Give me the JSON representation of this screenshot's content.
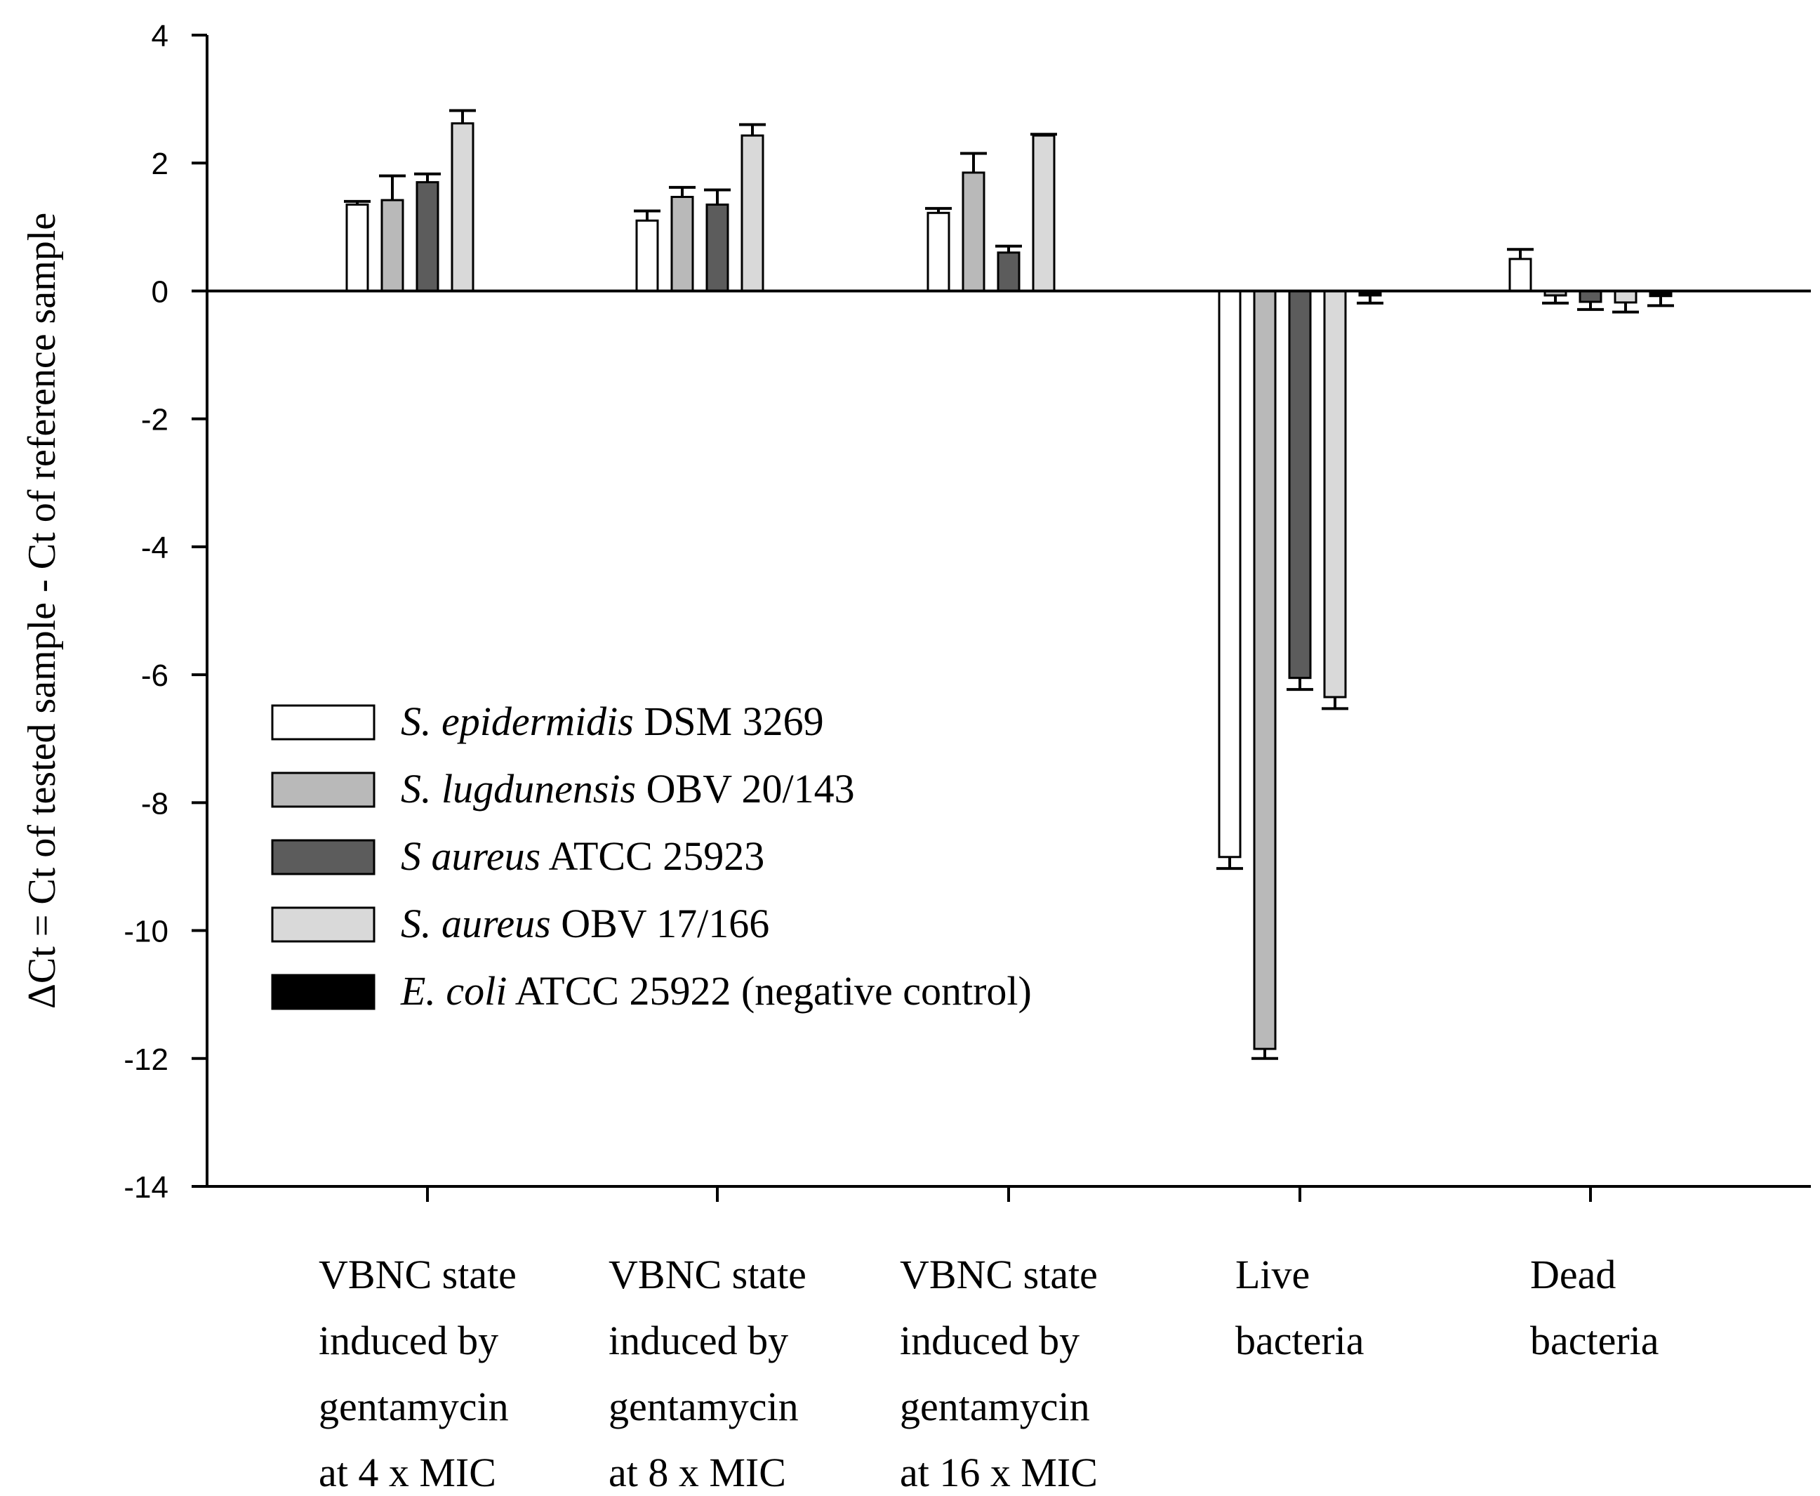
{
  "chart_data": {
    "type": "bar",
    "title": "",
    "xlabel": "",
    "ylabel": "ΔCt = Ct of tested sample - Ct of reference sample",
    "ylim": [
      -14,
      4
    ],
    "yticks": [
      4,
      2,
      0,
      -2,
      -4,
      -6,
      -8,
      -10,
      -12,
      -14
    ],
    "grid": false,
    "legend_position": "center-left",
    "categories": [
      [
        "VBNC state",
        "induced by",
        "gentamycin",
        "at 4 x MIC"
      ],
      [
        "VBNC state",
        "induced by",
        "gentamycin",
        "at 8 x MIC"
      ],
      [
        "VBNC state",
        "induced by",
        "gentamycin",
        "at 16 x MIC"
      ],
      [
        "Live",
        "bacteria"
      ],
      [
        "Dead",
        "bacteria"
      ]
    ],
    "series": [
      {
        "name_italic": "S. epidermidis",
        "name_rest": " DSM 3269",
        "color": "#ffffff",
        "values": [
          1.35,
          1.1,
          1.22,
          -8.85,
          0.5
        ],
        "errors": [
          0.05,
          0.15,
          0.07,
          0.18,
          0.15
        ]
      },
      {
        "name_italic": "S. lugdunensis",
        "name_rest": " OBV 20/143",
        "color": "#b9b9b9",
        "values": [
          1.42,
          1.47,
          1.85,
          -11.85,
          -0.07
        ],
        "errors": [
          0.38,
          0.15,
          0.3,
          0.15,
          0.12
        ]
      },
      {
        "name_italic": "S aureus",
        "name_rest": " ATCC 25923",
        "color": "#5c5c5c",
        "values": [
          1.7,
          1.35,
          0.6,
          -6.05,
          -0.17
        ],
        "errors": [
          0.13,
          0.23,
          0.1,
          0.18,
          0.12
        ]
      },
      {
        "name_italic": "S. aureus",
        "name_rest": " OBV 17/166",
        "color": "#d9d9d9",
        "values": [
          2.62,
          2.43,
          2.43,
          -6.35,
          -0.18
        ],
        "errors": [
          0.2,
          0.17,
          0.02,
          0.18,
          0.15
        ]
      },
      {
        "name_italic": "E. coli",
        "name_rest": " ATCC 25922 (negative control)",
        "color": "#000000",
        "values": [
          0,
          0,
          0,
          -0.07,
          -0.08
        ],
        "errors": [
          0,
          0,
          0,
          0.12,
          0.15
        ]
      }
    ]
  }
}
